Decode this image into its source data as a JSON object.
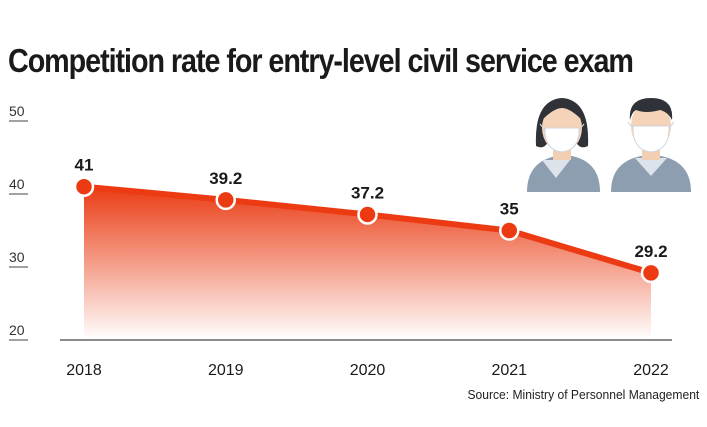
{
  "chart_data": {
    "type": "area",
    "title": "Competition rate for entry-level civil service exam",
    "source": "Source: Ministry of Personnel Management",
    "categories": [
      "2018",
      "2019",
      "2020",
      "2021",
      "2022"
    ],
    "series": [
      {
        "values": [
          41,
          39.2,
          37.2,
          35,
          29.2
        ]
      }
    ],
    "data_labels": [
      "41",
      "39.2",
      "37.2",
      "35",
      "29.2"
    ],
    "yticks": [
      50,
      40,
      30,
      20
    ],
    "ylim": [
      20,
      50
    ],
    "xlabel": "",
    "ylabel": "",
    "grid": false,
    "colors": {
      "line": "#ec3a12",
      "area_top": "#ea3c14",
      "area_bottom": "#ffffff",
      "marker_stroke": "#ffffff",
      "axis": "#444444"
    },
    "illustration": {
      "icons": [
        "woman-with-mask-icon",
        "man-with-mask-icon"
      ]
    }
  }
}
